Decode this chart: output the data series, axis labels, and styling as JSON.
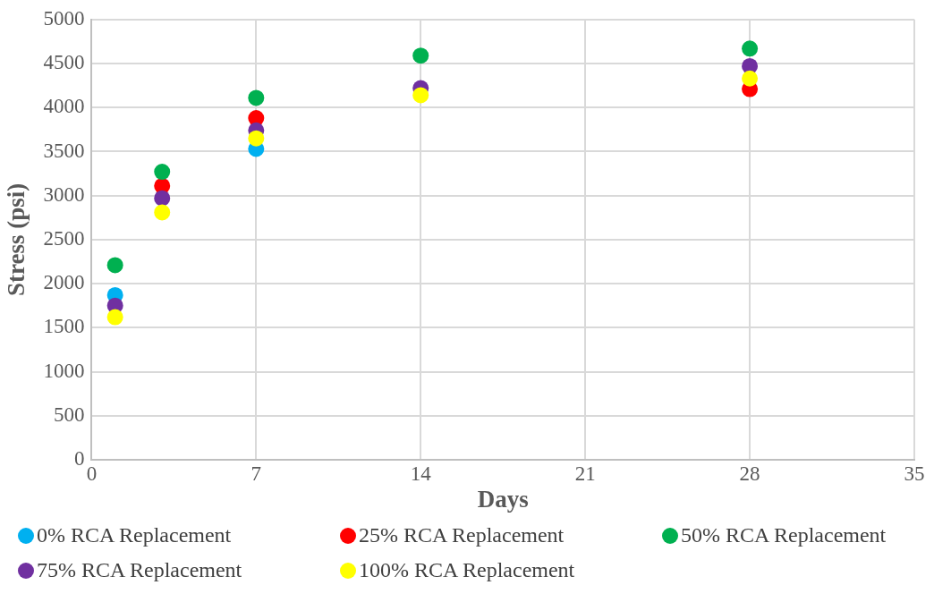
{
  "chart_data": {
    "type": "scatter",
    "xlabel": "Days",
    "ylabel": "Stress (psi)",
    "x": [
      1,
      3,
      7,
      14,
      28
    ],
    "series": [
      {
        "name": "0% RCA Replacement",
        "color": "#00b0f0",
        "values": [
          1870,
          null,
          3530,
          null,
          null
        ]
      },
      {
        "name": "25% RCA Replacement",
        "color": "#ff0000",
        "values": [
          null,
          3110,
          3880,
          null,
          4210
        ]
      },
      {
        "name": "50% RCA Replacement",
        "color": "#00b050",
        "values": [
          2210,
          3270,
          4110,
          4590,
          4670
        ]
      },
      {
        "name": "75% RCA Replacement",
        "color": "#7030a0",
        "values": [
          1750,
          2970,
          3740,
          4220,
          4470
        ]
      },
      {
        "name": "100% RCA Replacement",
        "color": "#ffff00",
        "values": [
          1620,
          2810,
          3650,
          4140,
          4330
        ]
      }
    ],
    "xlim": [
      0,
      35
    ],
    "xticks": [
      0,
      7,
      14,
      21,
      28,
      35
    ],
    "ylim": [
      0,
      5000
    ],
    "yticks": [
      0,
      500,
      1000,
      1500,
      2000,
      2500,
      3000,
      3500,
      4000,
      4500,
      5000
    ],
    "grid": true,
    "legend": "bottom",
    "marker": "circle"
  }
}
